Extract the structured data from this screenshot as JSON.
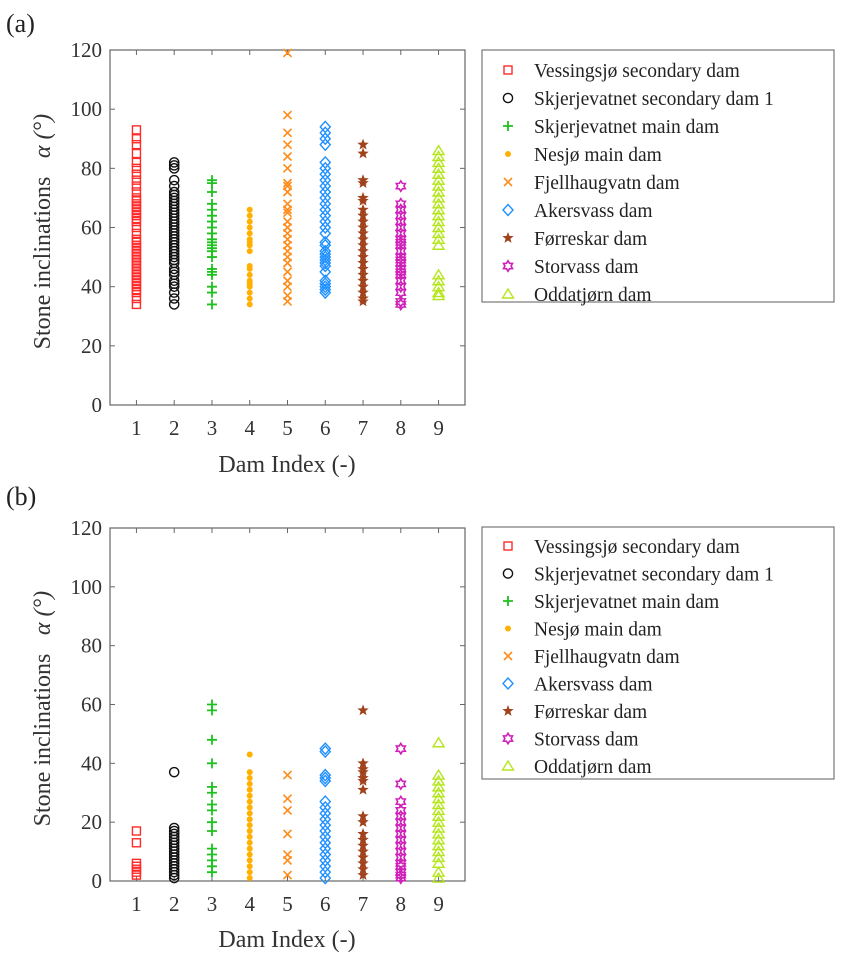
{
  "chart_data": [
    {
      "panel": "(a)",
      "type": "scatter",
      "xlabel": "Dam Index (-)",
      "ylabel": "Stone inclinations",
      "ylabel_symbol": "α (°)",
      "xlim": [
        0.3,
        9.7
      ],
      "ylim": [
        0,
        120
      ],
      "xticks": [
        "1",
        "2",
        "3",
        "4",
        "5",
        "6",
        "7",
        "8",
        "9"
      ],
      "yticks": [
        "0",
        "20",
        "40",
        "60",
        "80",
        "100",
        "120"
      ],
      "grid": false,
      "legend": "outside-right",
      "series": [
        {
          "name": "Vessingsjø secondary dam",
          "marker": "square",
          "color": "#ff2a2a",
          "x": 1,
          "y": [
            34,
            36,
            38,
            39,
            40,
            41,
            42,
            43,
            44,
            45,
            46,
            47,
            48,
            49,
            50,
            51,
            52,
            53,
            54,
            55,
            56,
            58,
            60,
            62,
            63,
            64,
            65,
            66,
            67,
            68,
            69,
            70,
            72,
            74,
            76,
            78,
            80,
            82,
            85,
            88,
            90,
            93
          ]
        },
        {
          "name": "Skjerjevatnet secondary dam 1",
          "marker": "circle",
          "color": "#111111",
          "x": 2,
          "y": [
            34,
            36,
            38,
            40,
            41,
            42,
            44,
            45,
            46,
            48,
            49,
            50,
            51,
            52,
            53,
            54,
            55,
            56,
            57,
            58,
            59,
            60,
            61,
            62,
            63,
            64,
            65,
            66,
            67,
            68,
            69,
            70,
            71,
            72,
            74,
            76,
            80,
            81,
            82
          ]
        },
        {
          "name": "Skjerjevatnet main dam",
          "marker": "plus",
          "color": "#1fc01f",
          "x": 3,
          "y": [
            34,
            38,
            40,
            44,
            45,
            46,
            50,
            52,
            53,
            54,
            55,
            56,
            58,
            60,
            62,
            64,
            66,
            68,
            72,
            75,
            76
          ]
        },
        {
          "name": "Nesjø main dam",
          "marker": "dot",
          "color": "#ffb000",
          "x": 4,
          "y": [
            34,
            36,
            38,
            40,
            41,
            42,
            44,
            46,
            47,
            52,
            54,
            55,
            56,
            58,
            60,
            62,
            64,
            66
          ]
        },
        {
          "name": "Fjellhaugvatn dam",
          "marker": "x",
          "color": "#ff8c1a",
          "x": 5,
          "y": [
            35,
            37,
            40,
            42,
            45,
            48,
            50,
            52,
            54,
            56,
            58,
            60,
            62,
            65,
            66,
            68,
            72,
            74,
            75,
            80,
            84,
            88,
            92,
            98,
            119
          ]
        },
        {
          "name": "Akersvass dam",
          "marker": "diamond",
          "color": "#1e90ff",
          "x": 6,
          "y": [
            38,
            39,
            40,
            41,
            42,
            45,
            47,
            48,
            49,
            50,
            51,
            52,
            54,
            55,
            58,
            60,
            62,
            64,
            66,
            68,
            70,
            72,
            74,
            76,
            78,
            80,
            82,
            88,
            90,
            92,
            94
          ]
        },
        {
          "name": "Førreskar dam",
          "marker": "star",
          "color": "#a0421c",
          "x": 7,
          "y": [
            35,
            36,
            38,
            40,
            42,
            44,
            46,
            48,
            50,
            52,
            54,
            56,
            58,
            60,
            62,
            64,
            66,
            69,
            70,
            75,
            76,
            85,
            88
          ]
        },
        {
          "name": "Storvass dam",
          "marker": "hexagram",
          "color": "#d01fb8",
          "x": 8,
          "y": [
            34,
            35,
            38,
            40,
            42,
            44,
            45,
            46,
            48,
            49,
            50,
            52,
            54,
            55,
            56,
            58,
            60,
            62,
            64,
            66,
            68,
            74
          ]
        },
        {
          "name": "Oddatjørn dam",
          "marker": "triangle",
          "color": "#b5e61d",
          "x": 9,
          "y": [
            37,
            38,
            40,
            42,
            44,
            54,
            56,
            58,
            60,
            62,
            64,
            66,
            68,
            70,
            72,
            74,
            76,
            78,
            80,
            82,
            84,
            86
          ]
        }
      ]
    },
    {
      "panel": "(b)",
      "type": "scatter",
      "xlabel": "Dam Index (-)",
      "ylabel": "Stone inclinations",
      "ylabel_symbol": "α (°)",
      "xlim": [
        0.3,
        9.7
      ],
      "ylim": [
        0,
        120
      ],
      "xticks": [
        "1",
        "2",
        "3",
        "4",
        "5",
        "6",
        "7",
        "8",
        "9"
      ],
      "yticks": [
        "0",
        "20",
        "40",
        "60",
        "80",
        "100",
        "120"
      ],
      "grid": false,
      "legend": "outside-right",
      "series": [
        {
          "name": "Vessingsjø secondary dam",
          "marker": "square",
          "color": "#ff2a2a",
          "x": 1,
          "y": [
            2,
            3,
            4,
            5,
            6,
            13,
            17
          ]
        },
        {
          "name": "Skjerjevatnet secondary dam 1",
          "marker": "circle",
          "color": "#111111",
          "x": 2,
          "y": [
            1,
            2,
            3,
            4,
            5,
            6,
            7,
            8,
            9,
            10,
            11,
            12,
            13,
            14,
            15,
            16,
            17,
            18,
            37
          ]
        },
        {
          "name": "Skjerjevatnet main dam",
          "marker": "plus",
          "color": "#1fc01f",
          "x": 3,
          "y": [
            3,
            5,
            7,
            9,
            11,
            17,
            20,
            24,
            26,
            30,
            32,
            40,
            48,
            58,
            60
          ]
        },
        {
          "name": "Nesjø main dam",
          "marker": "dot",
          "color": "#ffb000",
          "x": 4,
          "y": [
            1,
            3,
            5,
            7,
            9,
            11,
            13,
            15,
            17,
            19,
            21,
            23,
            25,
            27,
            29,
            31,
            33,
            35,
            37,
            43
          ]
        },
        {
          "name": "Fjellhaugvatn dam",
          "marker": "x",
          "color": "#ff8c1a",
          "x": 5,
          "y": [
            2,
            7,
            9,
            16,
            24,
            28,
            36
          ]
        },
        {
          "name": "Akersvass dam",
          "marker": "diamond",
          "color": "#1e90ff",
          "x": 6,
          "y": [
            1,
            3,
            5,
            7,
            9,
            11,
            13,
            15,
            17,
            19,
            21,
            23,
            25,
            27,
            34,
            35,
            36,
            44,
            45
          ]
        },
        {
          "name": "Førreskar dam",
          "marker": "star",
          "color": "#a0421c",
          "x": 7,
          "y": [
            2,
            4,
            6,
            8,
            10,
            12,
            14,
            16,
            20,
            22,
            31,
            34,
            35,
            37,
            38,
            40,
            58
          ]
        },
        {
          "name": "Storvass dam",
          "marker": "hexagram",
          "color": "#d01fb8",
          "x": 8,
          "y": [
            1,
            2,
            3,
            5,
            6,
            8,
            10,
            12,
            14,
            16,
            18,
            20,
            22,
            24,
            27,
            33,
            45
          ]
        },
        {
          "name": "Oddatjørn dam",
          "marker": "triangle",
          "color": "#b5e61d",
          "x": 9,
          "y": [
            1,
            3,
            6,
            8,
            10,
            12,
            14,
            16,
            18,
            20,
            22,
            24,
            26,
            28,
            30,
            32,
            34,
            36,
            47
          ]
        }
      ]
    }
  ]
}
